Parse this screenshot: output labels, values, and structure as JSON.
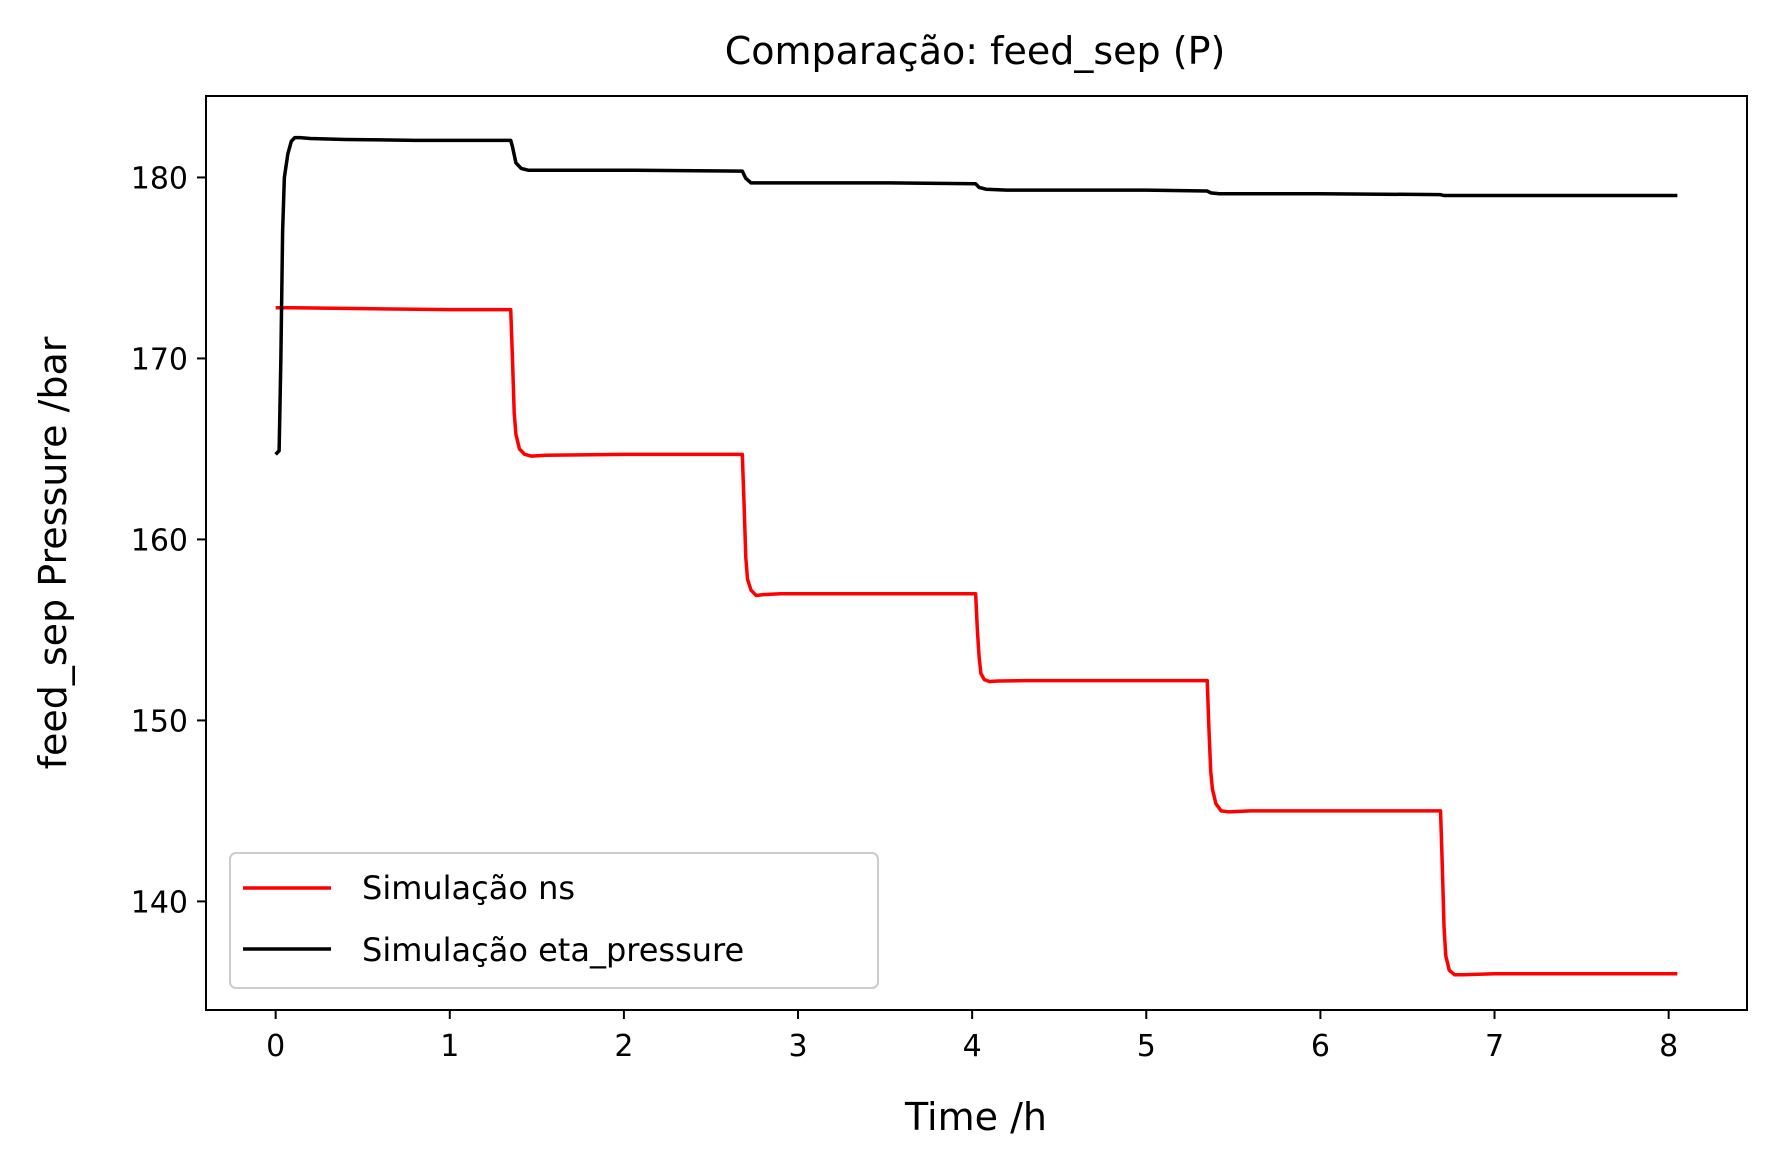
{
  "chart_data": {
    "type": "line",
    "title": "Comparação: feed_sep (P)",
    "xlabel": "Time /h",
    "ylabel": "feed_sep Pressure /bar",
    "xlim": [
      -0.4,
      8.45
    ],
    "ylim": [
      134,
      184.5
    ],
    "xticks": [
      0,
      1,
      2,
      3,
      4,
      5,
      6,
      7,
      8
    ],
    "yticks": [
      140,
      150,
      160,
      170,
      180
    ],
    "xtick_labels": [
      "0",
      "1",
      "2",
      "3",
      "4",
      "5",
      "6",
      "7",
      "8"
    ],
    "ytick_labels": [
      "140",
      "150",
      "160",
      "170",
      "180"
    ],
    "grid": false,
    "legend_position": "lower-left",
    "series": [
      {
        "name": "Simulação ns",
        "color": "#ff0000",
        "x": [
          0.0,
          0.1,
          0.5,
          1.0,
          1.35,
          1.36,
          1.37,
          1.38,
          1.4,
          1.43,
          1.47,
          1.55,
          2.0,
          2.68,
          2.69,
          2.7,
          2.71,
          2.73,
          2.76,
          2.8,
          2.9,
          3.5,
          4.02,
          4.03,
          4.04,
          4.05,
          4.07,
          4.1,
          4.15,
          4.3,
          5.0,
          5.35,
          5.36,
          5.37,
          5.38,
          5.4,
          5.43,
          5.47,
          5.6,
          6.2,
          6.69,
          6.7,
          6.71,
          6.72,
          6.74,
          6.77,
          6.82,
          7.0,
          8.05
        ],
        "y": [
          172.8,
          172.8,
          172.75,
          172.7,
          172.7,
          170.0,
          167.0,
          165.8,
          165.0,
          164.7,
          164.6,
          164.65,
          164.7,
          164.7,
          162.0,
          159.0,
          157.8,
          157.2,
          156.9,
          156.95,
          157.0,
          157.0,
          157.0,
          155.0,
          153.5,
          152.6,
          152.25,
          152.15,
          152.18,
          152.2,
          152.2,
          152.2,
          149.5,
          147.2,
          146.2,
          145.4,
          145.0,
          144.95,
          145.0,
          145.0,
          145.0,
          142.0,
          138.6,
          137.0,
          136.2,
          135.95,
          135.95,
          136.0,
          136.0
        ]
      },
      {
        "name": "Simulação eta_pressure",
        "color": "#000000",
        "x": [
          0.0,
          0.02,
          0.03,
          0.04,
          0.05,
          0.07,
          0.09,
          0.11,
          0.14,
          0.2,
          0.4,
          0.8,
          1.35,
          1.36,
          1.38,
          1.41,
          1.45,
          1.55,
          2.0,
          2.68,
          2.7,
          2.73,
          2.8,
          3.5,
          4.02,
          4.04,
          4.08,
          4.2,
          5.0,
          5.35,
          5.37,
          5.42,
          6.0,
          6.69,
          6.71,
          6.76,
          7.0,
          8.05
        ],
        "y": [
          164.7,
          164.9,
          170.0,
          177.0,
          180.0,
          181.3,
          182.0,
          182.2,
          182.2,
          182.15,
          182.1,
          182.05,
          182.05,
          181.7,
          180.8,
          180.5,
          180.4,
          180.4,
          180.4,
          180.35,
          179.95,
          179.7,
          179.7,
          179.7,
          179.65,
          179.45,
          179.35,
          179.3,
          179.3,
          179.25,
          179.15,
          179.1,
          179.1,
          179.05,
          179.0,
          179.0,
          179.0,
          179.0
        ]
      }
    ]
  }
}
